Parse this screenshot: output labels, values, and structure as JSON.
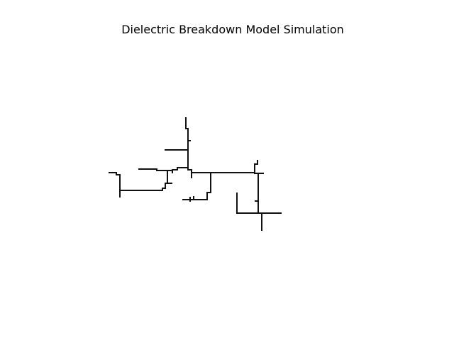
{
  "figure": {
    "title": "Dielectric Breakdown Model Simulation"
  },
  "colors": {
    "background": "#ffffff",
    "stroke": "#111111",
    "text": "#000000"
  }
}
